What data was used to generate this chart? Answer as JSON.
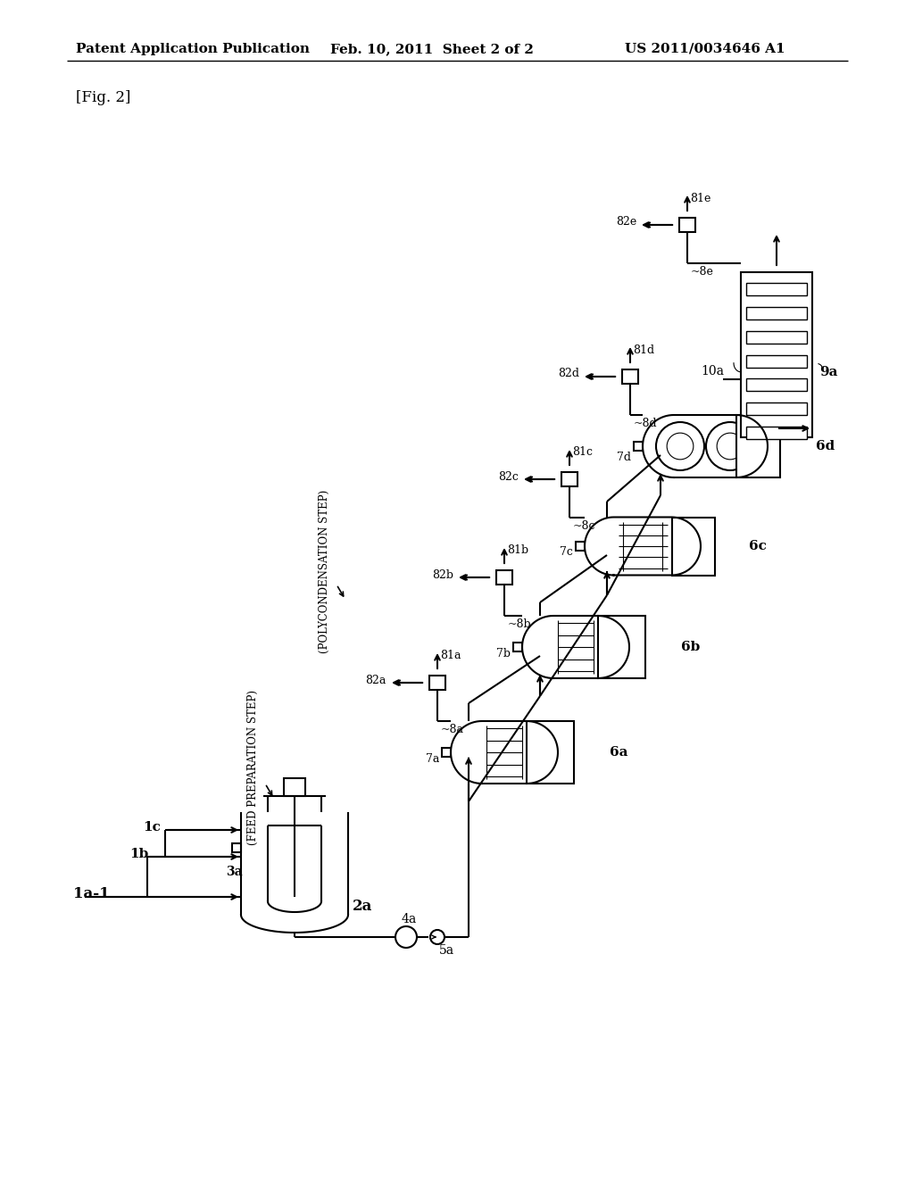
{
  "bg_color": "#ffffff",
  "header_text": "Patent Application Publication",
  "header_date": "Feb. 10, 2011  Sheet 2 of 2",
  "header_patent": "US 2011/0034646 A1",
  "fig_label": "[Fig. 2]",
  "label_feed_prep": "(FEED PREPARATION STEP)",
  "label_polycond": "(POLYCONDENSATION STEP)"
}
